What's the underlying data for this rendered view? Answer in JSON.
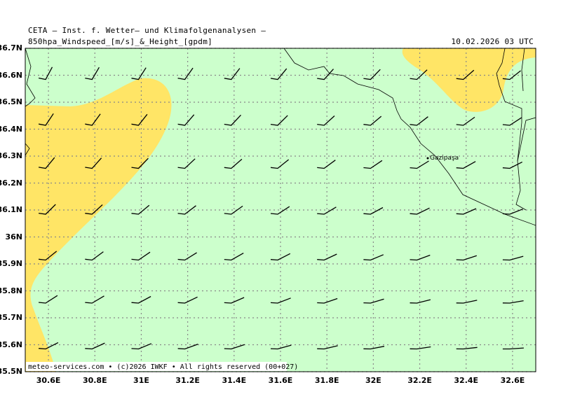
{
  "header": {
    "line1": "CETA — Inst. f. Wetter— und Klimafolgenanalysen —",
    "line2": "850hpa_Windspeed_[m/s]_&_Height_[gpdm]",
    "datetime": "10.02.2026 03 UTC"
  },
  "footer": {
    "copyright": "meteo-services.com • (c)2026 IWKF • All rights reserved (00+027)"
  },
  "map": {
    "place_label": "Gazipaşa",
    "lat_labels": [
      "36.7N",
      "36.6N",
      "36.5N",
      "36.4N",
      "36.3N",
      "36.2N",
      "36.1N",
      "36N",
      "35.9N",
      "35.8N",
      "35.7N",
      "35.6N",
      "35.5N"
    ],
    "lon_labels": [
      "30.6E",
      "30.8E",
      "31E",
      "31.2E",
      "31.4E",
      "31.6E",
      "31.8E",
      "32E",
      "32.2E",
      "32.4E",
      "32.6E"
    ],
    "lat_range": [
      35.5,
      36.7
    ],
    "lon_range": [
      30.5,
      32.7
    ],
    "colors": {
      "sea": "#ccffcc",
      "band": "#ffe566",
      "grid": "#888888",
      "barb": "#000000",
      "coast": "#000000"
    },
    "barb_grid": {
      "lats": [
        36.6,
        36.43,
        36.27,
        36.1,
        35.93,
        35.77,
        35.6
      ],
      "lons": [
        30.6,
        30.8,
        31.0,
        31.2,
        31.4,
        31.6,
        31.8,
        32.0,
        32.2,
        32.4,
        32.6
      ]
    }
  }
}
